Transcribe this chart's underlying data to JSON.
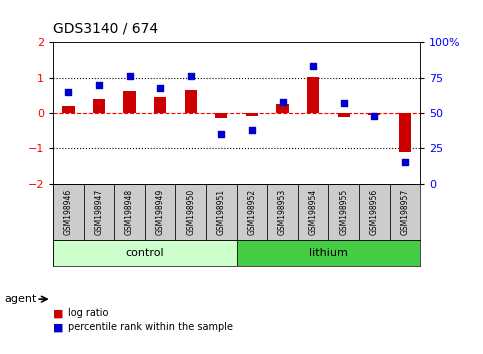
{
  "title": "GDS3140 / 674",
  "samples": [
    "GSM198946",
    "GSM198947",
    "GSM198948",
    "GSM198949",
    "GSM198950",
    "GSM198951",
    "GSM198952",
    "GSM198953",
    "GSM198954",
    "GSM198955",
    "GSM198956",
    "GSM198957"
  ],
  "log_ratio": [
    0.2,
    0.4,
    0.62,
    0.45,
    0.65,
    -0.15,
    -0.07,
    0.25,
    1.02,
    -0.1,
    -0.05,
    -1.1
  ],
  "percentile_rank": [
    65,
    70,
    76,
    68,
    76,
    35,
    38,
    58,
    83,
    57,
    48,
    15
  ],
  "control_count": 6,
  "lithium_count": 6,
  "bar_color": "#cc0000",
  "dot_color": "#0000cc",
  "ylim_left": [
    -2,
    2
  ],
  "ylim_right": [
    0,
    100
  ],
  "right_ticks": [
    0,
    25,
    50,
    75,
    100
  ],
  "right_tick_labels": [
    "0",
    "25",
    "50",
    "75",
    "100%"
  ],
  "left_ticks": [
    -2,
    -1,
    0,
    1,
    2
  ],
  "control_color": "#ccffcc",
  "lithium_color": "#44cc44",
  "header_bg": "#cccccc",
  "agent_label": "agent",
  "control_label": "control",
  "lithium_label": "lithium",
  "legend_log_ratio": "log ratio",
  "legend_percentile": "percentile rank within the sample"
}
